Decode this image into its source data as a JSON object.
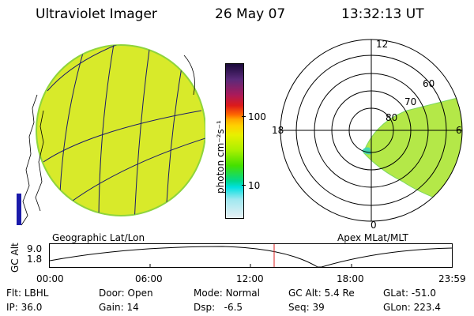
{
  "header": {
    "instrument": "Ultraviolet Imager",
    "date": "26 May 07",
    "time": "13:32:13 UT"
  },
  "left_panel": {
    "caption": "Geographic Lat/Lon"
  },
  "colorbar": {
    "unit_label": "photon cm⁻²s⁻¹",
    "ticks": [
      "100",
      "10"
    ],
    "colors": [
      "#1a0a3a",
      "#5a2a7a",
      "#aa1a5a",
      "#dd1a1a",
      "#ff6a00",
      "#ffaa00",
      "#ffd000",
      "#e8f000",
      "#aaf000",
      "#44e000",
      "#00d890",
      "#00e0e0",
      "#a0e8f0",
      "#e8f0f4"
    ]
  },
  "right_panel": {
    "caption": "Apex MLat/MLT",
    "mlt_labels": [
      "12",
      "18",
      "6",
      "0"
    ],
    "lat_labels": [
      "60",
      "70",
      "80"
    ]
  },
  "altitude_plot": {
    "axis_title": "GC Alt",
    "ylabels": [
      "9.0",
      "1.8"
    ],
    "time_ticks": [
      "00:00",
      "06:00",
      "12:00",
      "18:00",
      "23:59"
    ]
  },
  "info": {
    "filter_label": "Flt:",
    "filter_value": "LBHL",
    "door_label": "Door:",
    "door_value": "Open",
    "mode_label": "Mode:",
    "mode_value": "Normal",
    "gcalt_label": "GC Alt:",
    "gcalt_value": "5.4 Re",
    "glat_label": "GLat:",
    "glat_value": "-51.0",
    "ip_label": "IP:",
    "ip_value": "36.0",
    "gain_label": "Gain:",
    "gain_value": "14",
    "dsp_label": "Dsp:",
    "dsp_value": "-6.5",
    "seq_label": "Seq:",
    "seq_value": "39",
    "glon_label": "GLon:",
    "glon_value": "223.4"
  },
  "colors": {
    "globe_fill": "#d8ea2a",
    "globe_edge": "#8ed43c",
    "grid_line": "#1a1a6a",
    "time_marker": "#dd2222"
  }
}
